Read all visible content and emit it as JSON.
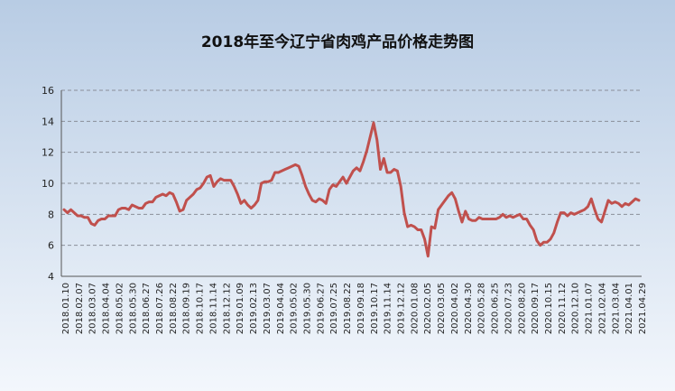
{
  "chart_data": {
    "type": "line",
    "title": "2018年至今辽宁省肉鸡产品价格走势图",
    "xlabel": "",
    "ylabel": "",
    "ylim": [
      4,
      16
    ],
    "yticks": [
      4,
      6,
      8,
      10,
      12,
      14,
      16
    ],
    "grid": true,
    "legend": "none",
    "line_color": "#C0504D",
    "x_tick_labels": [
      "2018.01.10",
      "2018.02.07",
      "2018.03.07",
      "2018.04.04",
      "2018.05.02",
      "2018.05.30",
      "2018.06.27",
      "2018.07.26",
      "2018.08.22",
      "2018.09.19",
      "2018.10.17",
      "2018.11.14",
      "2018.12.12",
      "2019.01.09",
      "2019.02.13",
      "2019.03.07",
      "2019.04.04",
      "2019.05.02",
      "2019.05.30",
      "2019.06.27",
      "2019.07.25",
      "2019.08.22",
      "2019.09.18",
      "2019.10.17",
      "2019.11.14",
      "2019.12.12",
      "2020.01.08",
      "2020.02.05",
      "2020.03.05",
      "2020.04.02",
      "2020.04.30",
      "2020.05.28",
      "2020.06.25",
      "2020.07.23",
      "2020.08.20",
      "2020.09.17",
      "2020.10.15",
      "2020.11.12",
      "2020.12.10",
      "2021.01.07",
      "2021.02.04",
      "2021.03.04",
      "2021.04.01",
      "2021.04.29"
    ],
    "values": [
      8.3,
      8.1,
      8.3,
      8.1,
      7.9,
      7.9,
      7.8,
      7.8,
      7.4,
      7.3,
      7.6,
      7.7,
      7.7,
      7.9,
      7.9,
      7.9,
      8.3,
      8.4,
      8.4,
      8.3,
      8.6,
      8.5,
      8.4,
      8.4,
      8.7,
      8.8,
      8.8,
      9.1,
      9.2,
      9.3,
      9.2,
      9.4,
      9.3,
      8.8,
      8.2,
      8.3,
      8.9,
      9.1,
      9.3,
      9.6,
      9.7,
      10.0,
      10.4,
      10.5,
      9.8,
      10.1,
      10.3,
      10.2,
      10.2,
      10.2,
      9.8,
      9.3,
      8.7,
      8.9,
      8.6,
      8.4,
      8.6,
      8.9,
      10.0,
      10.1,
      10.1,
      10.2,
      10.7,
      10.7,
      10.8,
      10.9,
      11.0,
      11.1,
      11.2,
      11.1,
      10.5,
      9.8,
      9.3,
      8.9,
      8.8,
      9.0,
      8.9,
      8.7,
      9.6,
      9.9,
      9.8,
      10.1,
      10.4,
      10.0,
      10.4,
      10.8,
      11.0,
      10.8,
      11.4,
      12.1,
      13.0,
      13.9,
      12.8,
      10.9,
      11.6,
      10.7,
      10.7,
      10.9,
      10.8,
      9.8,
      8.1,
      7.2,
      7.3,
      7.2,
      7.0,
      7.0,
      6.4,
      5.3,
      7.2,
      7.1,
      8.3,
      8.6,
      8.9,
      9.2,
      9.4,
      9.0,
      8.2,
      7.5,
      8.2,
      7.7,
      7.6,
      7.6,
      7.8,
      7.7,
      7.7,
      7.7,
      7.7,
      7.7,
      7.8,
      8.0,
      7.8,
      7.9,
      7.8,
      7.9,
      8.0,
      7.7,
      7.7,
      7.3,
      7.0,
      6.3,
      6.0,
      6.2,
      6.2,
      6.4,
      6.8,
      7.5,
      8.1,
      8.1,
      7.9,
      8.1,
      8.0,
      8.1,
      8.2,
      8.3,
      8.5,
      9.0,
      8.3,
      7.7,
      7.5,
      8.2,
      8.9,
      8.7,
      8.8,
      8.7,
      8.5,
      8.7,
      8.6,
      8.8,
      9.0,
      8.9
    ]
  }
}
